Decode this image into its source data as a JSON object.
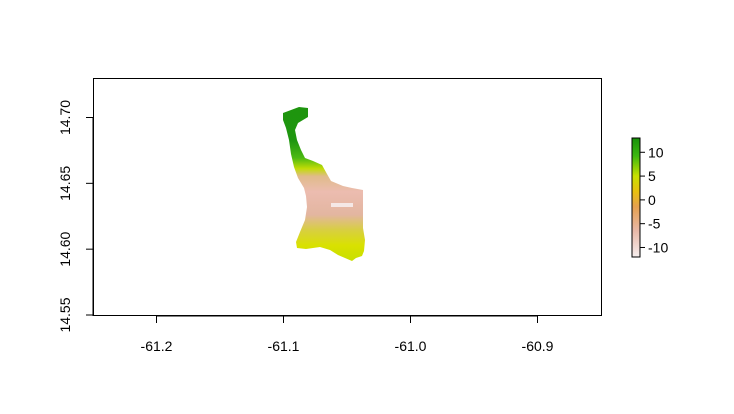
{
  "chart_data": {
    "type": "heatmap",
    "title": "",
    "xlabel": "",
    "ylabel": "",
    "x_axis": {
      "range": [
        -61.25,
        -60.85
      ],
      "ticks": [
        -61.2,
        -61.1,
        -61.0,
        -60.9
      ],
      "tick_labels": [
        "-61.2",
        "-61.1",
        "-61.0",
        "-60.9"
      ]
    },
    "y_axis": {
      "range": [
        14.55,
        14.73
      ],
      "ticks": [
        14.55,
        14.6,
        14.65,
        14.7
      ],
      "tick_labels": [
        "14.55",
        "14.60",
        "14.65",
        "14.70"
      ]
    },
    "grid": false,
    "legend": {
      "placement": "right",
      "type": "colorbar",
      "range": [
        -12,
        13
      ],
      "ticks": [
        10,
        5,
        0,
        -5,
        -10
      ],
      "tick_labels": [
        "10",
        "5",
        "0",
        "-5",
        "-10"
      ],
      "colors": [
        "#f6eeee",
        "#e8b8a8",
        "#e6a050",
        "#e8c010",
        "#c8e000",
        "#3cb810",
        "#18900c"
      ]
    },
    "raster_colors": {
      "high": "#1e950e",
      "mid_high": "#4cba12",
      "mid": "#d6e200",
      "low_mid": "#dfaa80",
      "low": "#eebcb2",
      "min": "#f5e8e6"
    }
  }
}
